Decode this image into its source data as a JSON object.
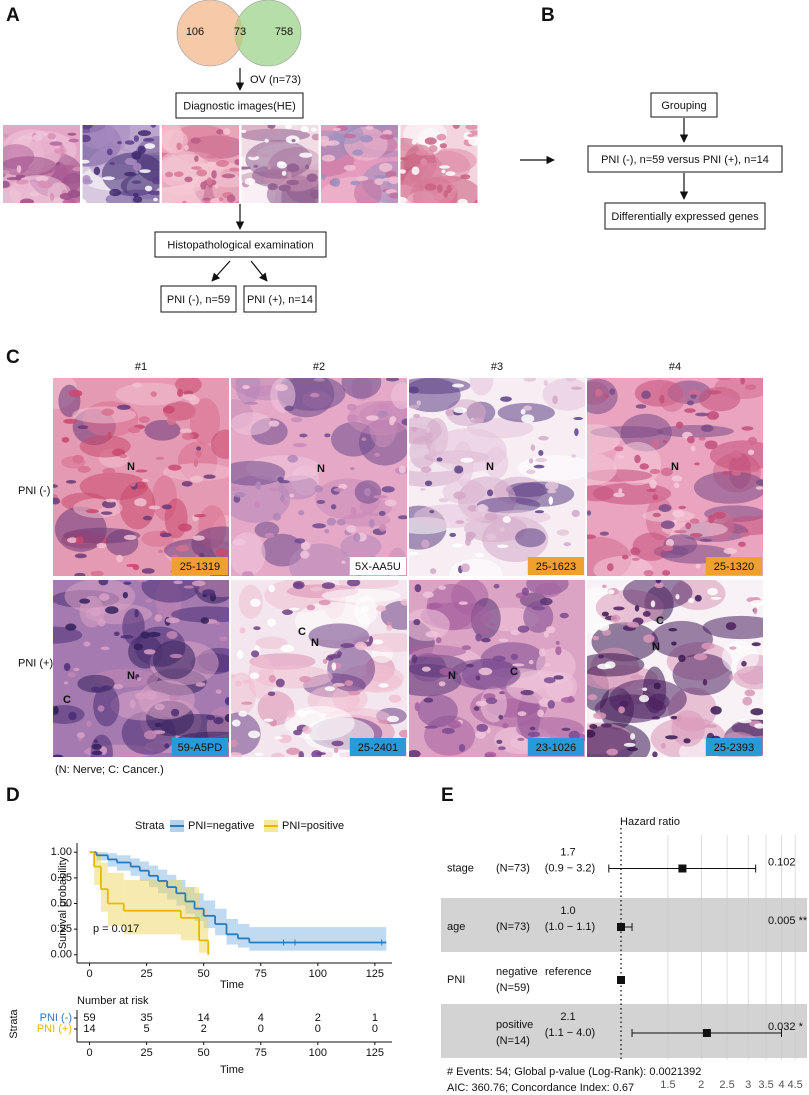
{
  "panel_labels": {
    "a": "A",
    "b": "B",
    "c": "C",
    "d": "D",
    "e": "E"
  },
  "panel_a": {
    "venn": {
      "left_only": 106,
      "overlap": 73,
      "right_only": 758
    },
    "arrow_label": "OV (n=73)",
    "box_images": "Diagnostic images(HE)",
    "box_exam": "Histopathological examination",
    "box_neg": "PNI (-), n=59",
    "box_pos": "PNI (+), n=14"
  },
  "panel_b": {
    "steps": [
      "Grouping",
      "PNI (-), n=59 versus PNI (+), n=14",
      "Differentially expressed genes"
    ]
  },
  "panel_c": {
    "columns": [
      "#1",
      "#2",
      "#3",
      "#4"
    ],
    "rows": [
      {
        "label": "PNI (-)",
        "cells": [
          {
            "annotations": [
              "N"
            ],
            "id": "25-1319"
          },
          {
            "annotations": [
              "N"
            ],
            "id": "5X-AA5U"
          },
          {
            "annotations": [
              "N"
            ],
            "id": "25-1623"
          },
          {
            "annotations": [
              "N"
            ],
            "id": "25-1320"
          }
        ]
      },
      {
        "label": "PNI (+)",
        "cells": [
          {
            "annotations": [
              "N",
              "C"
            ],
            "id": "59-A5PD"
          },
          {
            "annotations": [
              "C",
              "N"
            ],
            "id": "25-2401"
          },
          {
            "annotations": [
              "N",
              "C"
            ],
            "id": "23-1026"
          },
          {
            "annotations": [
              "C",
              "N"
            ],
            "id": "25-2393"
          }
        ]
      }
    ],
    "note": "(N: Nerve; C: Cancer.)"
  },
  "chart_data": [
    {
      "type": "km",
      "legend_title": "Strata",
      "xlabel": "Time",
      "ylabel": "Survival probability",
      "annotation": "p = 0.017",
      "xlim": [
        -5.5,
        132.5
      ],
      "ylim": [
        -0.08,
        1.09
      ],
      "xticks": [
        0,
        25,
        50,
        75,
        100,
        125
      ],
      "yticks": [
        {
          "value": 0,
          "label": "0.00"
        },
        0.25,
        {
          "value": 0.5,
          "label": "0.50"
        },
        0.75,
        {
          "value": 1,
          "label": "1.00"
        }
      ],
      "series": [
        {
          "name": "PNI=negative",
          "color": "#2b7bba",
          "band_color": "#7fb6e3",
          "x": [
            0,
            3,
            8,
            12,
            18,
            22,
            26,
            30,
            34,
            38,
            42,
            46,
            50,
            55,
            60,
            65,
            70,
            130
          ],
          "values": [
            1,
            0.97,
            0.93,
            0.9,
            0.86,
            0.82,
            0.77,
            0.72,
            0.66,
            0.6,
            0.52,
            0.45,
            0.38,
            0.3,
            0.2,
            0.16,
            0.12,
            0.12
          ],
          "ci_lower": [
            1,
            0.92,
            0.86,
            0.82,
            0.77,
            0.72,
            0.66,
            0.6,
            0.54,
            0.48,
            0.4,
            0.33,
            0.26,
            0.19,
            0.1,
            0.07,
            0.04,
            0.04
          ],
          "ci_upper": [
            1,
            1,
            0.99,
            0.97,
            0.94,
            0.91,
            0.87,
            0.83,
            0.78,
            0.73,
            0.66,
            0.6,
            0.53,
            0.45,
            0.35,
            0.3,
            0.27,
            0.27
          ],
          "censor_x": [
            85,
            90,
            128
          ]
        },
        {
          "name": "PNI=positive",
          "color": "#e7b800",
          "band_color": "#f0d560",
          "x": [
            0,
            2,
            5,
            8,
            15,
            40,
            48,
            52
          ],
          "values": [
            1,
            0.86,
            0.64,
            0.5,
            0.43,
            0.36,
            0.14,
            0
          ],
          "ci_lower": [
            1,
            0.68,
            0.42,
            0.28,
            0.2,
            0.14,
            0.02,
            0
          ],
          "ci_upper": [
            1,
            1,
            0.9,
            0.8,
            0.73,
            0.66,
            0.45,
            0.45
          ]
        }
      ],
      "risk_table": {
        "title": "Number at risk",
        "label": "Strata",
        "rows": [
          {
            "name": "PNI (-)",
            "values": [
              59,
              35,
              14,
              4,
              2,
              1
            ]
          },
          {
            "name": "PNI (+)",
            "values": [
              14,
              5,
              2,
              0,
              0,
              0
            ]
          }
        ]
      }
    },
    {
      "type": "forest",
      "title": "Hazard ratio",
      "log_x": true,
      "xlim": [
        0.89,
        4.9
      ],
      "xticks": [
        1.5,
        2,
        2.5,
        3,
        3.5,
        4,
        4.5
      ],
      "rows": [
        {
          "variable": "stage",
          "n": "(N=73)",
          "hr": 1.7,
          "hr_label": "1.7",
          "ci": [
            0.9,
            3.2
          ],
          "ci_label": "(0.9 − 3.2)",
          "p_label": "0.102"
        },
        {
          "variable": "age",
          "n": "(N=73)",
          "hr": 1.0,
          "hr_label": "1.0",
          "ci": [
            1.0,
            1.1
          ],
          "ci_label": "(1.0 − 1.1)",
          "p_label": "0.005 **"
        },
        {
          "variable": "PNI",
          "level": "negative",
          "n": "(N=59)",
          "reference": "reference",
          "hr": 1
        },
        {
          "level": "positive",
          "n": "(N=14)",
          "hr": 2.1,
          "hr_label": "2.1",
          "ci": [
            1.1,
            4.0
          ],
          "ci_label": "(1.1 − 4.0)",
          "p_label": "0.032 *"
        }
      ],
      "footnotes": [
        "# Events: 54; Global p-value (Log-Rank): 0.0021392",
        "AIC: 360.76; Concordance Index: 0.67"
      ]
    }
  ]
}
